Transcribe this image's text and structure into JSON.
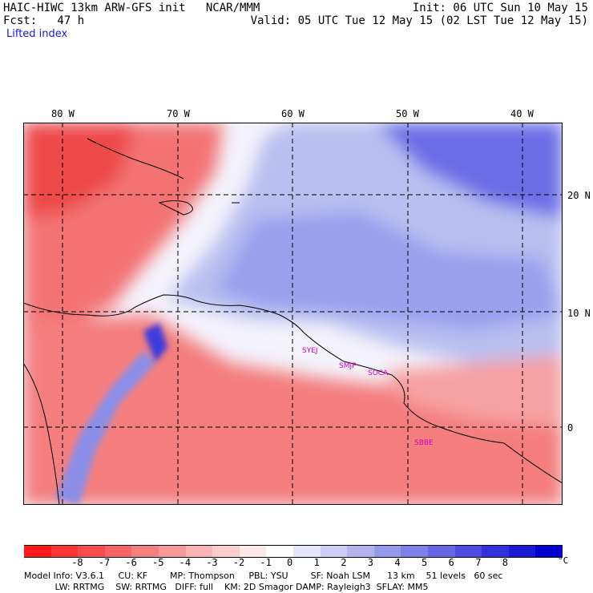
{
  "header": {
    "model_line": "HAIC-HIWC 13km ARW-GFS init   NCAR/MMM",
    "fcst_line": "Fcst:   47 h",
    "init_line": "Init: 06 UTC Sun 10 May 15",
    "valid_line": "Valid: 05 UTC Tue 12 May 15 (02 LST Tue 12 May 15)",
    "field_name": "Lifted index"
  },
  "map": {
    "lon_labels": [
      "80 W",
      "70 W",
      "60 W",
      "50 W",
      "40 W"
    ],
    "lat_labels": [
      "20 N",
      "10 N",
      "0"
    ],
    "stations": [
      "SYEJ",
      "SMJP",
      "SOCA",
      "SBBE"
    ],
    "grid_lines": "dashed"
  },
  "colorbar": {
    "ticks": [
      "-8",
      "-7",
      "-6",
      "-5",
      "-4",
      "-3",
      "-2",
      "-1",
      "0",
      "1",
      "2",
      "3",
      "4",
      "5",
      "6",
      "7",
      "8"
    ],
    "unit": "°C",
    "colors": [
      "#ff1a1a",
      "#ff3333",
      "#f94c4c",
      "#f66666",
      "#f58080",
      "#f59999",
      "#f8b3b3",
      "#fbcccc",
      "#ffe8e8",
      "#ffffff",
      "#e6e6fb",
      "#ccccf5",
      "#b3b3f0",
      "#9999ec",
      "#7f7fe8",
      "#6666e3",
      "#4c4ce0",
      "#3333dc",
      "#1a1ad6",
      "#0000d0"
    ]
  },
  "footer": {
    "line1": "Model Info: V3.6.1     CU: KF        MP: Thompson     PBL: YSU        SF: Noah LSM      13 km    51 levels   60 sec",
    "line2": "           LW: RRTMG    SW: RRTMG   DIFF: full    KM: 2D Smagor DAMP: Rayleigh3  SFLAY: MM5"
  }
}
